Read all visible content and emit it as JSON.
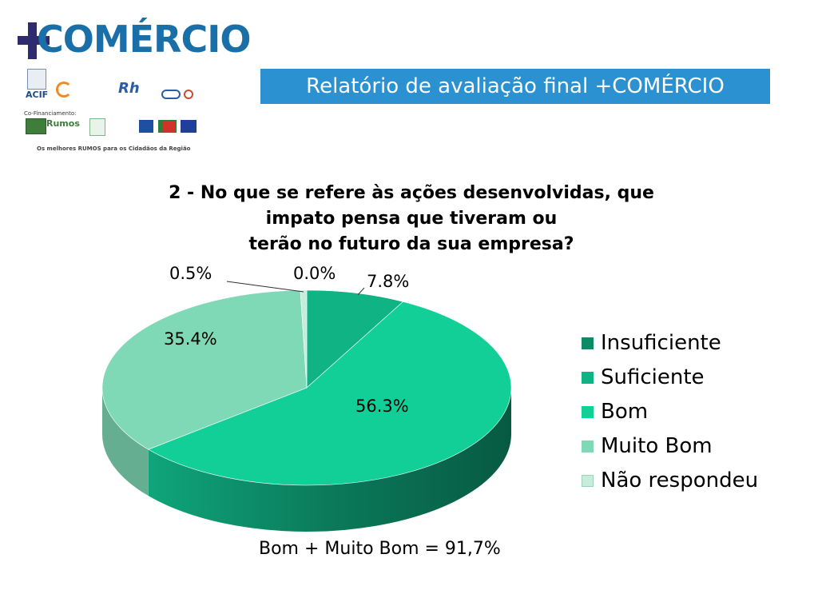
{
  "header": {
    "logo_text": "COMÉRCIO",
    "banner_title": "Relatório de avaliação final +COMÉRCIO"
  },
  "partners": {
    "acif_label": "ACIF",
    "cofinanciamento_label": "Co-Financiamento:",
    "rumos_label": "Rumos",
    "tagline": "Os melhores RUMOS para os Cidadãos da Região"
  },
  "colors": {
    "banner": "#2b91d0",
    "logo_blue": "#1a6fa8",
    "logo_plus": "#2e2c6e"
  },
  "chart_data": {
    "type": "pie",
    "title_lines": [
      "2 - No que se refere às ações desenvolvidas, que",
      "impato pensa que tiveram ou",
      "terão no futuro da sua empresa?"
    ],
    "categories": [
      "Insuficiente",
      "Suficiente",
      "Bom",
      "Muito Bom",
      "Não respondeu"
    ],
    "values": [
      0.0,
      7.8,
      56.3,
      35.4,
      0.5
    ],
    "value_labels": [
      "0.0%",
      "7.8%",
      "56.3%",
      "35.4%",
      "0.5%"
    ],
    "colors": [
      "#0e8a66",
      "#10b383",
      "#12cf98",
      "#7fd9b6",
      "#c5ecdc"
    ],
    "legend_position": "right",
    "annotation": "Bom + Muito Bom = 91,7%"
  }
}
